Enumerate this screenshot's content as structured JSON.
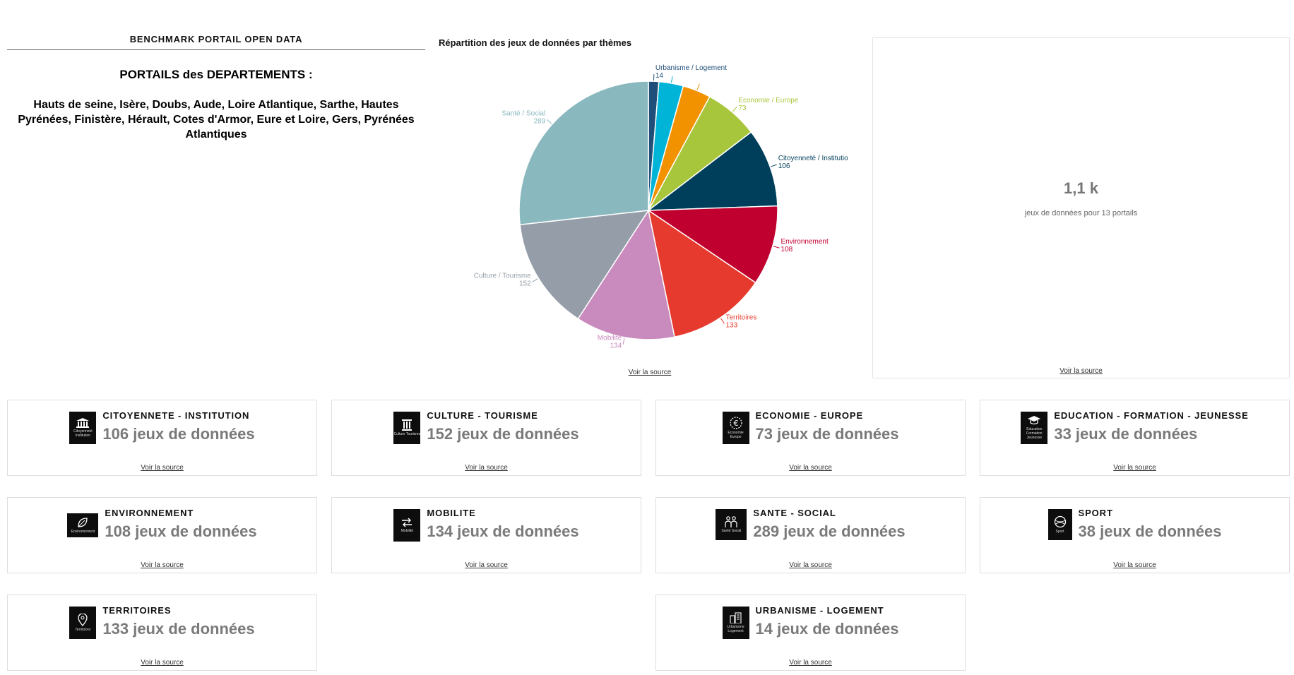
{
  "header": {
    "benchmark_title": "BENCHMARK PORTAIL OPEN DATA",
    "portails_title": "PORTAILS des DEPARTEMENTS :",
    "departments": "Hauts de seine, Isère, Doubs, Aude, Loire Atlantique, Sarthe, Hautes Pyrénées, Finistère, Hérault, Cotes d'Armor, Eure et Loire, Gers, Pyrénées Atlantiques"
  },
  "chart_data": {
    "type": "pie",
    "title": "Répartition des jeux de données par thèmes",
    "slices": [
      {
        "label": "Urbanisme / Logement",
        "value": 14,
        "color": "#1f4e79",
        "show_label": true
      },
      {
        "label": "",
        "value": 33,
        "color": "#00b4d8",
        "show_label": false
      },
      {
        "label": "",
        "value": 38,
        "color": "#f39200",
        "show_label": false
      },
      {
        "label": "Economie / Europe",
        "value": 73,
        "color": "#a8c63c",
        "show_label": true
      },
      {
        "label": "Citoyenneté / Institution",
        "value": 106,
        "color": "#003f5c",
        "show_label": true
      },
      {
        "label": "Environnement",
        "value": 108,
        "color": "#c0002f",
        "show_label": true
      },
      {
        "label": "Territoires",
        "value": 133,
        "color": "#e63a2e",
        "show_label": true
      },
      {
        "label": "Mobilité",
        "value": 134,
        "color": "#c98bbd",
        "show_label": true
      },
      {
        "label": "Culture / Tourisme",
        "value": 152,
        "color": "#959ea8",
        "show_label": true
      },
      {
        "label": "Santé / Social",
        "value": 289,
        "color": "#8ab8bf",
        "show_label": true
      }
    ],
    "label_colors": {
      "Urbanisme / Logement": "#1f4e79",
      "Economie / Europe": "#a8c63c",
      "Citoyenneté / Institution": "#003f5c",
      "Environnement": "#c0002f",
      "Territoires": "#e63a2e",
      "Mobilité": "#c98bbd",
      "Culture / Tourisme": "#959ea8",
      "Santé / Social": "#8ab8bf"
    }
  },
  "source_link": "Voir la source",
  "total": {
    "value": "1,1 k",
    "label": "jeux de données pour 13 portails"
  },
  "cards": [
    {
      "title": "CITOYENNETE - INSTITUTION",
      "count": "106 jeux de données",
      "icon": "building-icon",
      "icon_caption": "Citoyenneté Institution"
    },
    {
      "title": "CULTURE - TOURISME",
      "count": "152 jeux de données",
      "icon": "column-icon",
      "icon_caption": "Culture Tourisme"
    },
    {
      "title": "ECONOMIE - EUROPE",
      "count": "73 jeux de données",
      "icon": "euro-icon",
      "icon_caption": "Economie Europe"
    },
    {
      "title": "EDUCATION - FORMATION - JEUNESSE",
      "count": "33 jeux de données",
      "icon": "graduation-cap-icon",
      "icon_caption": "Education Formation Jeunesse"
    },
    {
      "title": "ENVIRONNEMENT",
      "count": "108 jeux de données",
      "icon": "leaf-icon",
      "icon_caption": "Environnement"
    },
    {
      "title": "MOBILITE",
      "count": "134 jeux de données",
      "icon": "arrows-icon",
      "icon_caption": "Mobilité"
    },
    {
      "title": "SANTE - SOCIAL",
      "count": "289 jeux de données",
      "icon": "people-icon",
      "icon_caption": "Santé Social"
    },
    {
      "title": "SPORT",
      "count": "38 jeux de données",
      "icon": "ball-icon",
      "icon_caption": "Sport"
    },
    {
      "title": "TERRITOIRES",
      "count": "133 jeux de données",
      "icon": "map-pin-icon",
      "icon_caption": "Territoires"
    },
    {
      "title": "URBANISME - LOGEMENT",
      "count": "14 jeux de données",
      "icon": "buildings-icon",
      "icon_caption": "Urbanisme Logement"
    }
  ]
}
